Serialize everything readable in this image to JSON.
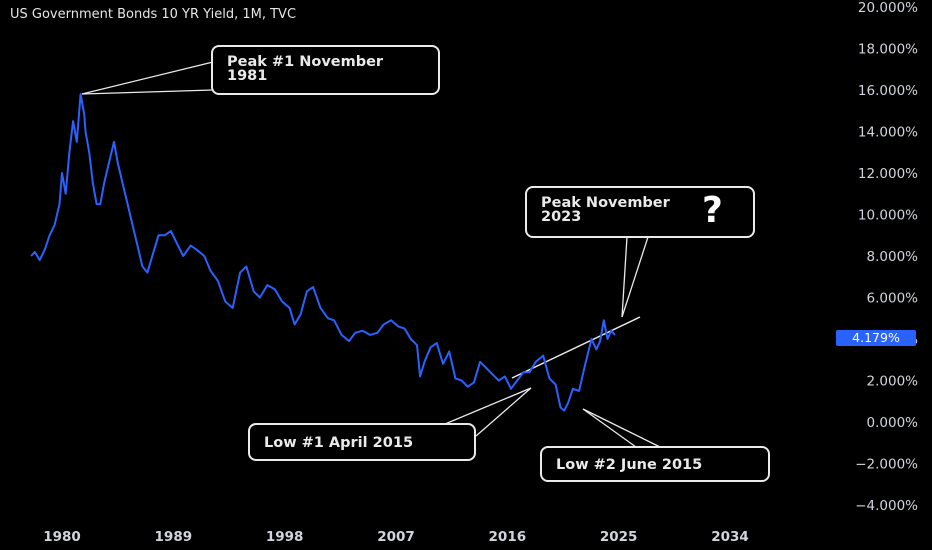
{
  "header": {
    "title": "US Government Bonds 10 YR Yield, 1M, TVC"
  },
  "price_tag": "4.179%",
  "colors": {
    "series": "#2962ff",
    "background": "#000000",
    "text": "#d1d4dc",
    "annotation": "#eaeaea"
  },
  "annotations": {
    "peak1": "Peak #1 November\n1981",
    "peak2": "Peak November\n2023",
    "peak2_icon": "question-mark-icon",
    "low1": "Low #1 April 2015",
    "low2": "Low #2 June 2015"
  },
  "chart_data": {
    "type": "line",
    "title": "US Government Bonds 10 YR Yield, 1M, TVC",
    "xlabel": "",
    "ylabel": "",
    "xlim": [
      1977.5,
      2040
    ],
    "ylim": [
      -4.5,
      20
    ],
    "x_ticks": [
      1980,
      1989,
      1998,
      2007,
      2016,
      2025,
      2034
    ],
    "y_ticks": [
      {
        "value": 20,
        "label": "20.000%"
      },
      {
        "value": 18,
        "label": "18.000%"
      },
      {
        "value": 16,
        "label": "16.000%"
      },
      {
        "value": 14,
        "label": "14.000%"
      },
      {
        "value": 12,
        "label": "12.000%"
      },
      {
        "value": 10,
        "label": "10.000%"
      },
      {
        "value": 8,
        "label": "8.000%"
      },
      {
        "value": 6,
        "label": "6.000%"
      },
      {
        "value": 4,
        "label": "4.000%"
      },
      {
        "value": 2,
        "label": "2.000%"
      },
      {
        "value": 0,
        "label": "0.000%"
      },
      {
        "value": -2,
        "label": "−2.000%"
      },
      {
        "value": -4,
        "label": "−4.000%"
      }
    ],
    "grid": false,
    "series": [
      {
        "color": "#2962ff",
        "x": [
          1977.5,
          1977.8,
          1978.2,
          1978.6,
          1979.0,
          1979.4,
          1979.8,
          1980.0,
          1980.3,
          1980.6,
          1980.9,
          1981.2,
          1981.5,
          1981.8,
          1981.9,
          1982.2,
          1982.5,
          1982.8,
          1983.1,
          1983.4,
          1983.8,
          1984.2,
          1984.5,
          1984.9,
          1985.3,
          1985.7,
          1986.1,
          1986.5,
          1986.9,
          1987.3,
          1987.8,
          1988.3,
          1988.8,
          1989.3,
          1989.8,
          1990.4,
          1990.9,
          1991.5,
          1992.0,
          1992.6,
          1993.2,
          1993.8,
          1994.4,
          1994.9,
          1995.5,
          1996.0,
          1996.6,
          1997.2,
          1997.8,
          1998.4,
          1998.8,
          1999.3,
          1999.8,
          2000.3,
          2000.9,
          2001.5,
          2002.0,
          2002.6,
          2003.2,
          2003.7,
          2004.3,
          2004.9,
          2005.5,
          2006.0,
          2006.6,
          2007.2,
          2007.7,
          2008.2,
          2008.7,
          2008.95,
          2009.3,
          2009.8,
          2010.3,
          2010.8,
          2011.3,
          2011.8,
          2012.3,
          2012.8,
          2013.3,
          2013.8,
          2014.3,
          2014.8,
          2015.3,
          2015.8,
          2016.3,
          2016.8,
          2017.3,
          2017.8,
          2018.3,
          2018.9,
          2019.4,
          2019.9,
          2020.3,
          2020.6,
          2020.9,
          2021.3,
          2021.8,
          2022.3,
          2022.8,
          2023.2,
          2023.5,
          2023.8,
          2024.1,
          2024.4,
          2024.7
        ],
        "y": [
          8.0,
          8.2,
          7.8,
          8.3,
          9.0,
          9.5,
          10.5,
          12.0,
          11.0,
          13.0,
          14.5,
          13.5,
          15.8,
          14.8,
          14.0,
          13.0,
          11.5,
          10.5,
          10.5,
          11.5,
          12.5,
          13.5,
          12.5,
          11.5,
          10.5,
          9.5,
          8.5,
          7.5,
          7.2,
          8.0,
          9.0,
          9.0,
          9.2,
          8.6,
          8.0,
          8.5,
          8.3,
          8.0,
          7.3,
          6.8,
          5.8,
          5.5,
          7.2,
          7.5,
          6.3,
          6.0,
          6.6,
          6.4,
          5.8,
          5.5,
          4.7,
          5.2,
          6.3,
          6.5,
          5.5,
          5.0,
          4.9,
          4.2,
          3.9,
          4.3,
          4.4,
          4.2,
          4.3,
          4.7,
          4.9,
          4.6,
          4.5,
          4.0,
          3.7,
          2.2,
          2.9,
          3.6,
          3.8,
          2.8,
          3.4,
          2.1,
          2.0,
          1.7,
          1.9,
          2.9,
          2.6,
          2.3,
          2.0,
          2.2,
          1.6,
          2.0,
          2.4,
          2.4,
          2.9,
          3.2,
          2.1,
          1.8,
          0.7,
          0.55,
          0.9,
          1.6,
          1.5,
          2.8,
          4.0,
          3.5,
          3.9,
          4.9,
          4.0,
          4.4,
          4.2
        ]
      }
    ]
  }
}
